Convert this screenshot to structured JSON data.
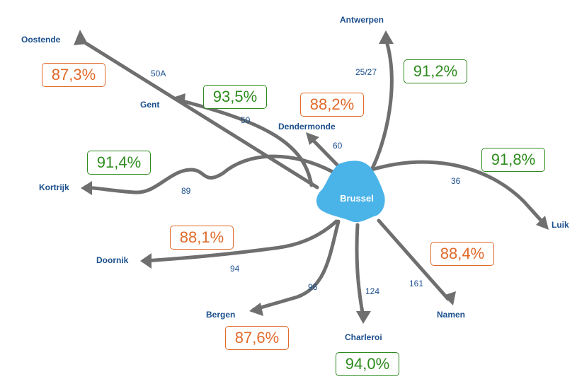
{
  "hub": {
    "label": "Brussel",
    "color": "#4ab3e8"
  },
  "colors": {
    "good": "#2e8b1e",
    "warn": "#e06a2a",
    "road": "#6f6f6f",
    "label": "#1b4f8e"
  },
  "routes": [
    {
      "id": "oostende",
      "destination": "Oostende",
      "road": "50A",
      "percent": "87,3%",
      "status": "warn"
    },
    {
      "id": "gent",
      "destination": "Gent",
      "road": "50",
      "percent": "93,5%",
      "status": "good"
    },
    {
      "id": "antwerpen",
      "destination": "Antwerpen",
      "road": "25/27",
      "percent": "91,2%",
      "status": "good"
    },
    {
      "id": "dendermonde",
      "destination": "Dendermonde",
      "road": "60",
      "percent": "88,2%",
      "status": "warn"
    },
    {
      "id": "kortrijk",
      "destination": "Kortrijk",
      "road": "89",
      "percent": "91,4%",
      "status": "good"
    },
    {
      "id": "luik",
      "destination": "Luik",
      "road": "36",
      "percent": "91,8%",
      "status": "good"
    },
    {
      "id": "doornik",
      "destination": "Doornik",
      "road": "94",
      "percent": "88,1%",
      "status": "warn"
    },
    {
      "id": "bergen",
      "destination": "Bergen",
      "road": "96",
      "percent": "87,6%",
      "status": "warn"
    },
    {
      "id": "charleroi",
      "destination": "Charleroi",
      "road": "124",
      "percent": "94,0%",
      "status": "good"
    },
    {
      "id": "namen",
      "destination": "Namen",
      "road": "161",
      "percent": "88,4%",
      "status": "warn"
    }
  ]
}
